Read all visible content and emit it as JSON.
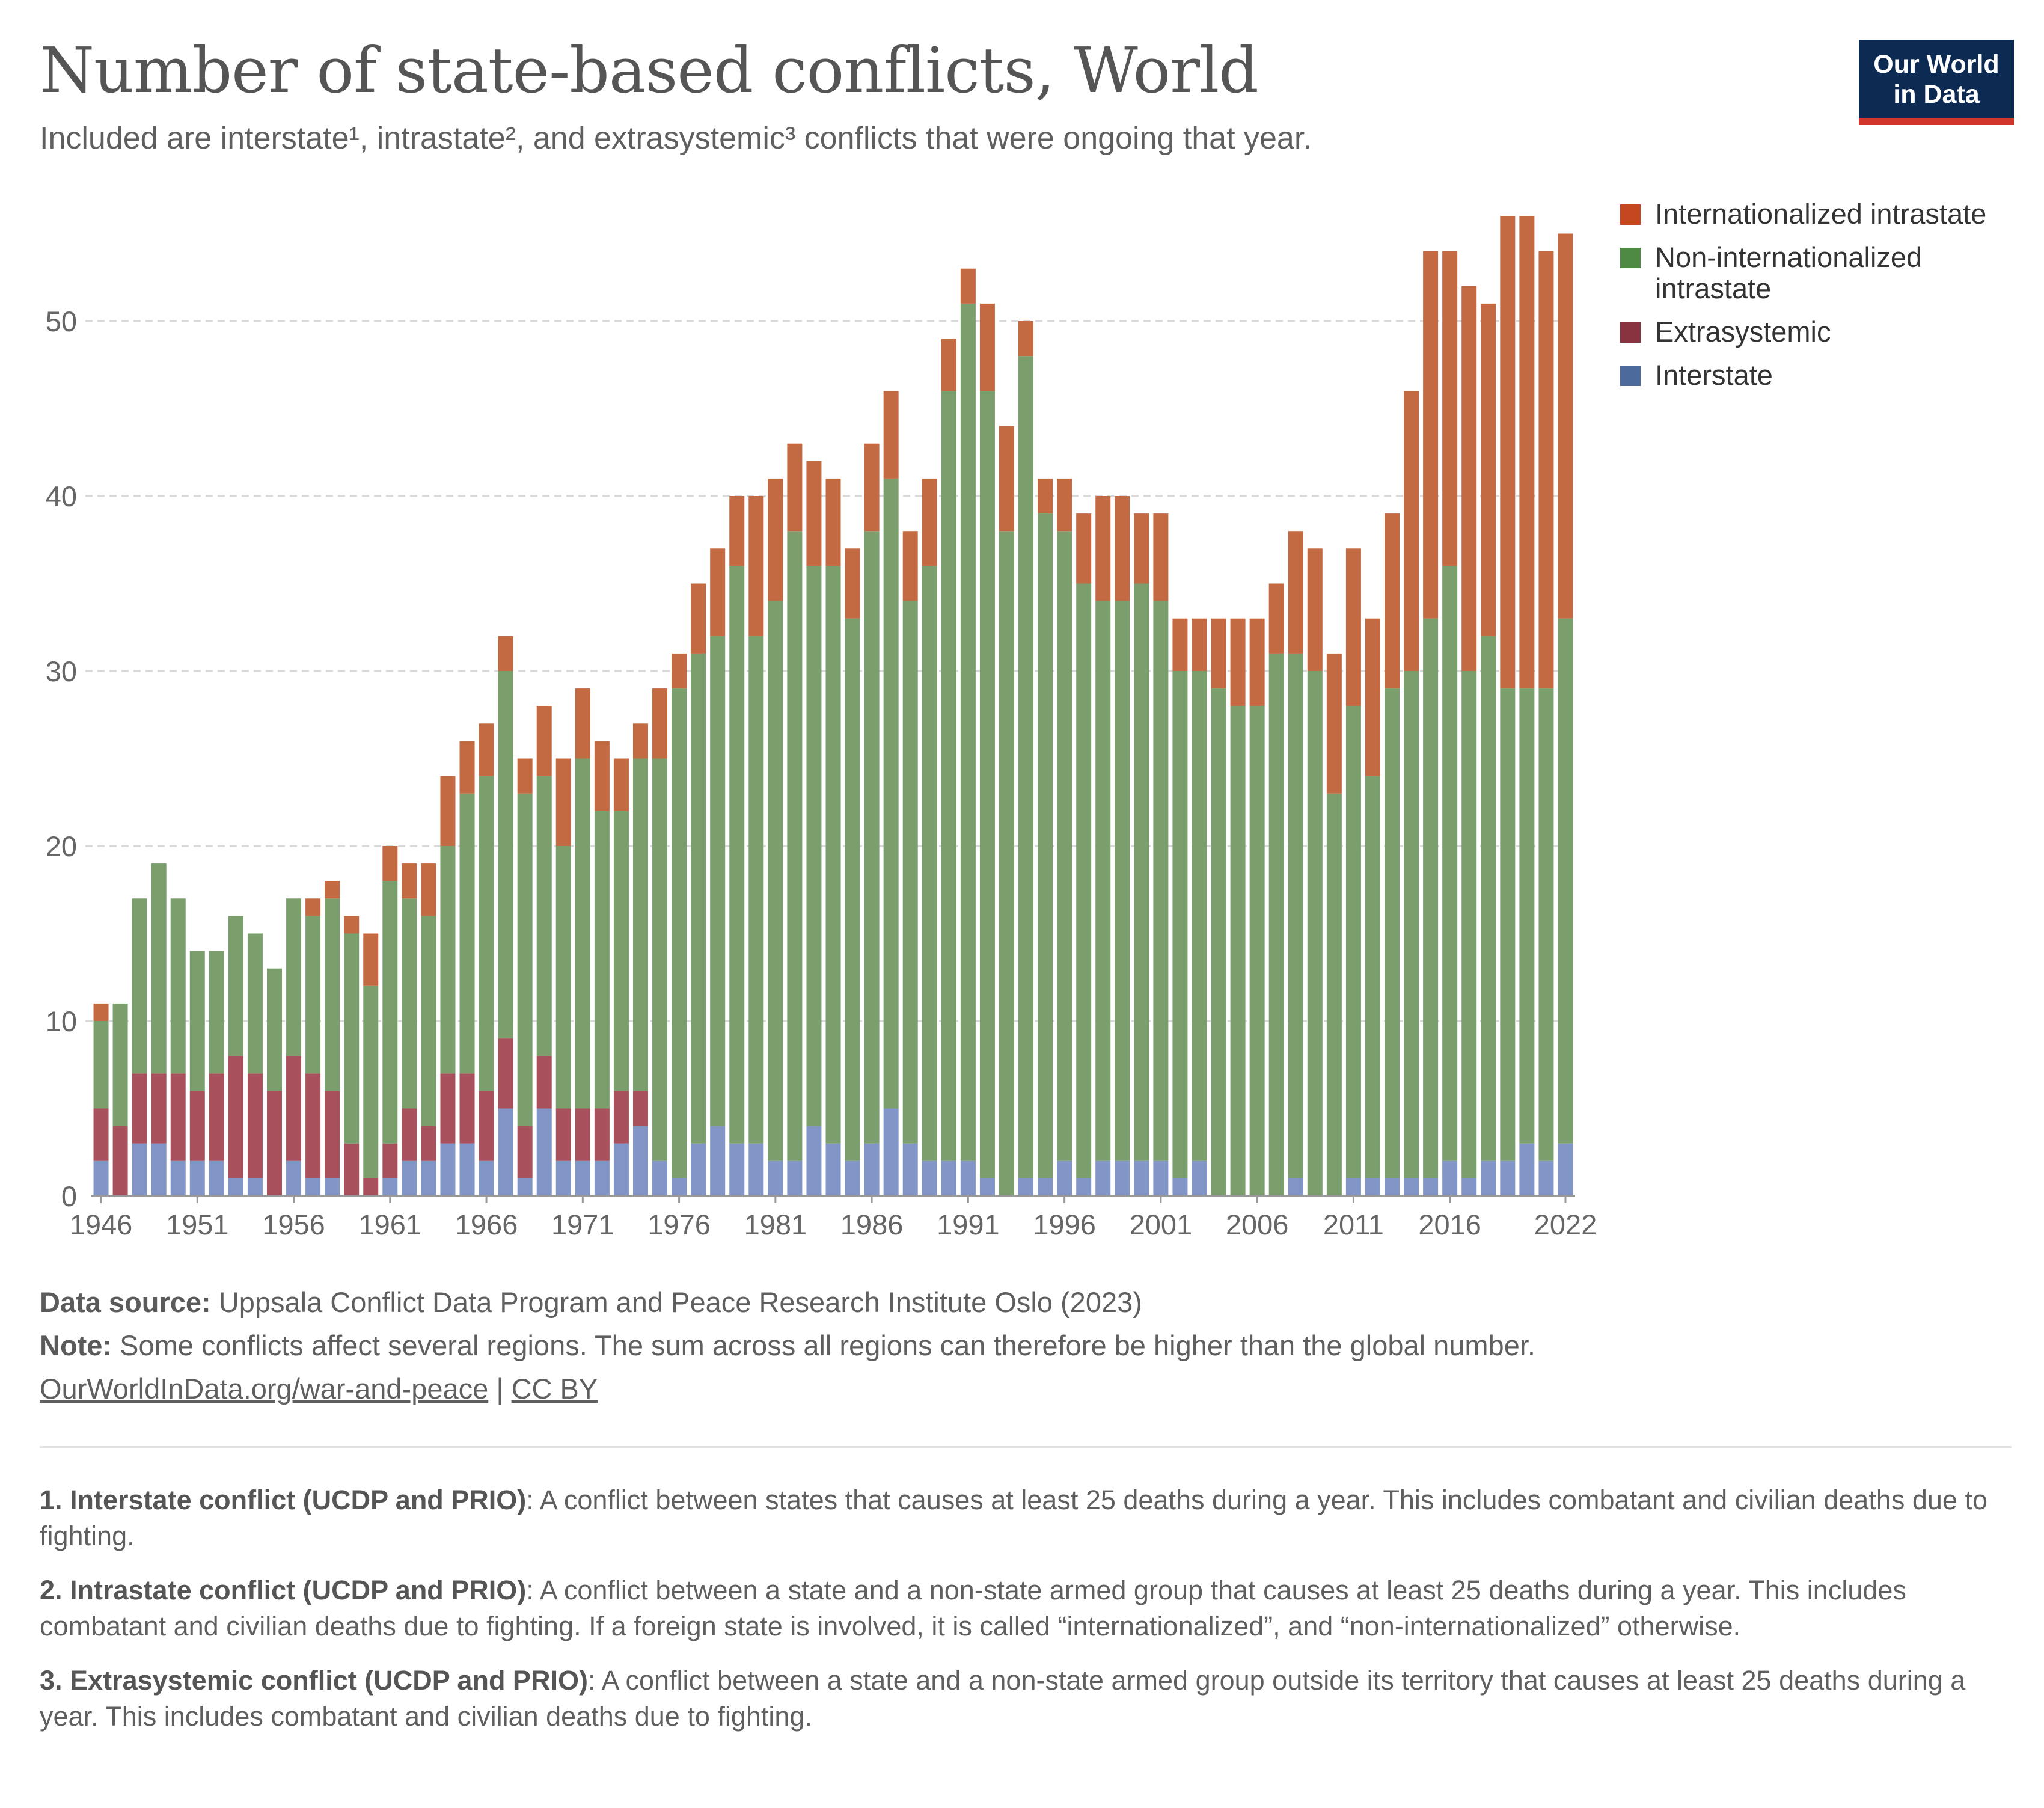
{
  "header": {
    "title": "Number of state-based conflicts, World",
    "subtitle": "Included are interstate¹, intrastate², and extrasystemic³ conflicts that were ongoing that year.",
    "logo_line1": "Our World",
    "logo_line2": "in Data"
  },
  "legend": [
    {
      "label": "Internationalized intrastate",
      "color": "#c4471f"
    },
    {
      "label": "Non-internationalized intrastate",
      "color": "#4e8a43"
    },
    {
      "label": "Extrasystemic",
      "color": "#8a3340"
    },
    {
      "label": "Interstate",
      "color": "#4c6a9c"
    }
  ],
  "chart_data": {
    "type": "bar",
    "stacked": true,
    "title": "Number of state-based conflicts, World",
    "ylim": [
      0,
      56
    ],
    "yticks": [
      0,
      10,
      20,
      30,
      40,
      50
    ],
    "xticks": [
      "1946",
      "1951",
      "1956",
      "1961",
      "1966",
      "1971",
      "1976",
      "1981",
      "1986",
      "1991",
      "1996",
      "2001",
      "2006",
      "2011",
      "2016",
      "2022"
    ],
    "grid": true,
    "legend_position": "top-right",
    "categories": [
      "1946",
      "1947",
      "1948",
      "1949",
      "1950",
      "1951",
      "1952",
      "1953",
      "1954",
      "1955",
      "1956",
      "1957",
      "1958",
      "1959",
      "1960",
      "1961",
      "1962",
      "1963",
      "1964",
      "1965",
      "1966",
      "1967",
      "1968",
      "1969",
      "1970",
      "1971",
      "1972",
      "1973",
      "1974",
      "1975",
      "1976",
      "1977",
      "1978",
      "1979",
      "1980",
      "1981",
      "1982",
      "1983",
      "1984",
      "1985",
      "1986",
      "1987",
      "1988",
      "1989",
      "1990",
      "1991",
      "1992",
      "1993",
      "1994",
      "1995",
      "1996",
      "1997",
      "1998",
      "1999",
      "2000",
      "2001",
      "2002",
      "2003",
      "2004",
      "2005",
      "2006",
      "2007",
      "2008",
      "2009",
      "2010",
      "2011",
      "2012",
      "2013",
      "2014",
      "2015",
      "2016",
      "2017",
      "2018",
      "2019",
      "2020",
      "2021",
      "2022"
    ],
    "series": [
      {
        "name": "Interstate",
        "color": "#8196c6",
        "values": [
          2,
          0,
          3,
          3,
          2,
          2,
          2,
          1,
          1,
          0,
          2,
          1,
          1,
          0,
          0,
          1,
          2,
          2,
          3,
          3,
          2,
          5,
          1,
          5,
          2,
          2,
          2,
          3,
          4,
          2,
          1,
          3,
          4,
          3,
          3,
          2,
          2,
          4,
          3,
          2,
          3,
          5,
          3,
          2,
          2,
          2,
          1,
          0,
          1,
          1,
          2,
          1,
          2,
          2,
          2,
          2,
          1,
          2,
          0,
          0,
          0,
          0,
          1,
          0,
          0,
          1,
          1,
          1,
          1,
          1,
          2,
          1,
          2,
          2,
          3,
          2,
          3
        ]
      },
      {
        "name": "Extrasystemic",
        "color": "#a8505c",
        "values": [
          3,
          4,
          4,
          4,
          5,
          4,
          5,
          7,
          6,
          6,
          6,
          6,
          5,
          3,
          1,
          2,
          3,
          2,
          4,
          4,
          4,
          4,
          3,
          3,
          3,
          3,
          3,
          3,
          2,
          0,
          0,
          0,
          0,
          0,
          0,
          0,
          0,
          0,
          0,
          0,
          0,
          0,
          0,
          0,
          0,
          0,
          0,
          0,
          0,
          0,
          0,
          0,
          0,
          0,
          0,
          0,
          0,
          0,
          0,
          0,
          0,
          0,
          0,
          0,
          0,
          0,
          0,
          0,
          0,
          0,
          0,
          0,
          0,
          0,
          0,
          0,
          0
        ]
      },
      {
        "name": "Non-internationalized intrastate",
        "color": "#7a9f6d",
        "values": [
          5,
          7,
          10,
          12,
          10,
          8,
          7,
          8,
          8,
          7,
          9,
          9,
          11,
          12,
          11,
          15,
          12,
          12,
          13,
          16,
          18,
          21,
          19,
          16,
          15,
          20,
          17,
          16,
          19,
          23,
          28,
          28,
          28,
          33,
          29,
          32,
          36,
          32,
          33,
          31,
          35,
          36,
          31,
          34,
          44,
          49,
          45,
          38,
          47,
          38,
          36,
          34,
          32,
          32,
          33,
          32,
          29,
          28,
          29,
          28,
          28,
          31,
          30,
          30,
          23,
          27,
          23,
          28,
          29,
          32,
          34,
          29,
          30,
          27,
          26,
          27,
          30
        ]
      },
      {
        "name": "Internationalized intrastate",
        "color": "#c36a42",
        "values": [
          1,
          0,
          0,
          0,
          0,
          0,
          0,
          0,
          0,
          0,
          0,
          1,
          1,
          1,
          3,
          2,
          2,
          3,
          4,
          3,
          3,
          2,
          2,
          4,
          5,
          4,
          4,
          3,
          2,
          4,
          2,
          4,
          5,
          4,
          8,
          7,
          5,
          6,
          5,
          4,
          5,
          5,
          4,
          5,
          3,
          2,
          5,
          6,
          2,
          2,
          3,
          4,
          6,
          6,
          4,
          5,
          3,
          3,
          4,
          5,
          5,
          4,
          7,
          7,
          8,
          9,
          9,
          10,
          16,
          21,
          18,
          22,
          19,
          27,
          27,
          25,
          22
        ]
      }
    ]
  },
  "footer": {
    "source_label": "Data source:",
    "source_text": " Uppsala Conflict Data Program and Peace Research Institute Oslo (2023)",
    "note_label": "Note:",
    "note_text": " Some conflicts affect several regions. The sum across all regions can therefore be higher than the global number.",
    "link1": "OurWorldInData.org/war-and-peace",
    "link_sep": " | ",
    "link2": "CC BY"
  },
  "notes": [
    {
      "label": "1. Interstate conflict (UCDP and PRIO)",
      "text": ": A conflict between states that causes at least 25 deaths during a year. This includes combatant and civilian deaths due to fighting."
    },
    {
      "label": "2. Intrastate conflict (UCDP and PRIO)",
      "text": ": A conflict between a state and a non-state armed group that causes at least 25 deaths during a year. This includes combatant and civilian deaths due to fighting. If a foreign state is involved, it is called “internationalized”, and “non-internationalized” otherwise."
    },
    {
      "label": "3. Extrasystemic conflict (UCDP and PRIO)",
      "text": ": A conflict between a state and a non-state armed group outside its territory that causes at least 25 deaths during a year. This includes combatant and civilian deaths due to fighting."
    }
  ]
}
